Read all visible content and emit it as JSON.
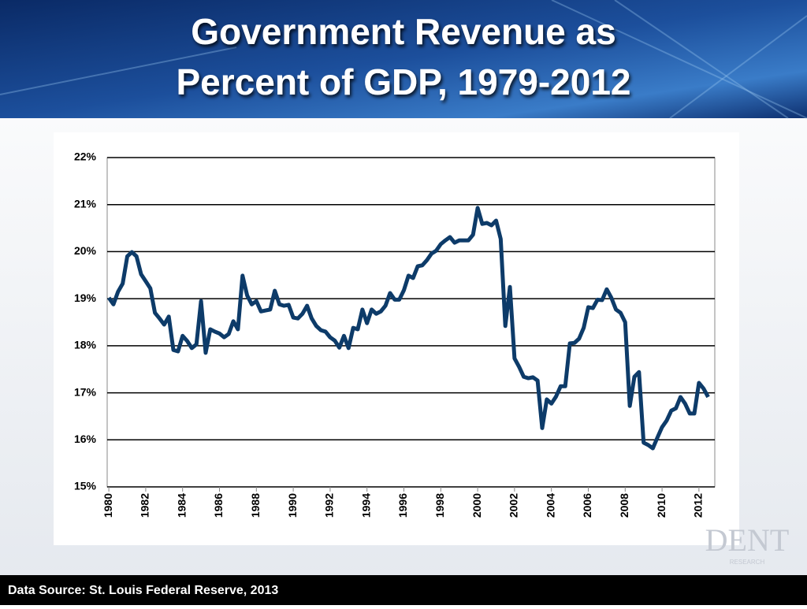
{
  "title": [
    "Government Revenue as",
    "Percent of GDP, 1979-2012"
  ],
  "source": "Data Source: St. Louis Federal Reserve, 2013",
  "logo": {
    "name": "DENT",
    "tagline": "RESEARCH"
  },
  "chart_data": {
    "type": "line",
    "x": [
      1980,
      1980.25,
      1980.5,
      1980.75,
      1981,
      1981.25,
      1981.5,
      1981.75,
      1982,
      1982.25,
      1982.5,
      1982.75,
      1983,
      1983.25,
      1983.5,
      1983.75,
      1984,
      1984.25,
      1984.5,
      1984.75,
      1985,
      1985.25,
      1985.5,
      1985.75,
      1986,
      1986.25,
      1986.5,
      1986.75,
      1987,
      1987.25,
      1987.5,
      1987.75,
      1988,
      1988.25,
      1988.5,
      1988.75,
      1989,
      1989.25,
      1989.5,
      1989.75,
      1990,
      1990.25,
      1990.5,
      1990.75,
      1991,
      1991.25,
      1991.5,
      1991.75,
      1992,
      1992.25,
      1992.5,
      1992.75,
      1993,
      1993.25,
      1993.5,
      1993.75,
      1994,
      1994.25,
      1994.5,
      1994.75,
      1995,
      1995.25,
      1995.5,
      1995.75,
      1996,
      1996.25,
      1996.5,
      1996.75,
      1997,
      1997.25,
      1997.5,
      1997.75,
      1998,
      1998.25,
      1998.5,
      1998.75,
      1999,
      1999.25,
      1999.5,
      1999.75,
      2000,
      2000.25,
      2000.5,
      2000.75,
      2001,
      2001.25,
      2001.5,
      2001.75,
      2002,
      2002.25,
      2002.5,
      2002.75,
      2003,
      2003.25,
      2003.5,
      2003.75,
      2004,
      2004.25,
      2004.5,
      2004.75,
      2005,
      2005.25,
      2005.5,
      2005.75,
      2006,
      2006.25,
      2006.5,
      2006.75,
      2007,
      2007.25,
      2007.5,
      2007.75,
      2008,
      2008.25,
      2008.5,
      2008.75,
      2009,
      2009.25,
      2009.5,
      2009.75,
      2010,
      2010.25,
      2010.5,
      2010.75,
      2011,
      2011.25,
      2011.5,
      2011.75,
      2012,
      2012.25,
      2012.5
    ],
    "series": [
      {
        "name": "Government Revenue",
        "color": "#0d3b69",
        "values": [
          19.02,
          18.88,
          19.15,
          19.32,
          19.9,
          19.99,
          19.9,
          19.52,
          19.37,
          19.22,
          18.7,
          18.58,
          18.45,
          18.62,
          17.91,
          17.88,
          18.21,
          18.1,
          17.95,
          18.03,
          18.95,
          17.85,
          18.35,
          18.3,
          18.26,
          18.18,
          18.25,
          18.52,
          18.35,
          19.49,
          19.07,
          18.88,
          18.95,
          18.73,
          18.75,
          18.77,
          19.17,
          18.88,
          18.85,
          18.87,
          18.6,
          18.58,
          18.68,
          18.85,
          18.58,
          18.42,
          18.33,
          18.3,
          18.18,
          18.11,
          17.96,
          18.21,
          17.95,
          18.38,
          18.35,
          18.77,
          18.48,
          18.77,
          18.68,
          18.73,
          18.85,
          19.12,
          18.98,
          18.98,
          19.18,
          19.49,
          19.44,
          19.69,
          19.71,
          19.82,
          19.96,
          20.02,
          20.16,
          20.24,
          20.31,
          20.19,
          20.24,
          20.24,
          20.24,
          20.36,
          20.93,
          20.59,
          20.61,
          20.56,
          20.66,
          20.27,
          18.42,
          19.25,
          17.73,
          17.55,
          17.34,
          17.31,
          17.33,
          17.26,
          16.25,
          16.86,
          16.77,
          16.92,
          17.14,
          17.14,
          18.05,
          18.06,
          18.15,
          18.38,
          18.82,
          18.8,
          18.98,
          18.97,
          19.2,
          19.02,
          18.77,
          18.7,
          18.5,
          16.72,
          17.34,
          17.44,
          15.94,
          15.89,
          15.82,
          16.05,
          16.27,
          16.41,
          16.62,
          16.67,
          16.91,
          16.77,
          16.56,
          16.56,
          17.21,
          17.09,
          16.91
        ]
      }
    ],
    "xlim": [
      1979.91,
      2012.86
    ],
    "xticks": [
      1980,
      1982,
      1984,
      1986,
      1988,
      1990,
      1992,
      1994,
      1996,
      1998,
      2000,
      2002,
      2004,
      2006,
      2008,
      2010,
      2012
    ],
    "ylim": [
      15,
      22
    ],
    "yticks": [
      {
        "value": 15,
        "label": "15%"
      },
      {
        "value": 16,
        "label": "16%"
      },
      {
        "value": 17,
        "label": "17%"
      },
      {
        "value": 18,
        "label": "18%"
      },
      {
        "value": 19,
        "label": "19%"
      },
      {
        "value": 20,
        "label": "20%"
      },
      {
        "value": 21,
        "label": "21%"
      },
      {
        "value": 22,
        "label": "22%"
      }
    ],
    "grid": true
  }
}
